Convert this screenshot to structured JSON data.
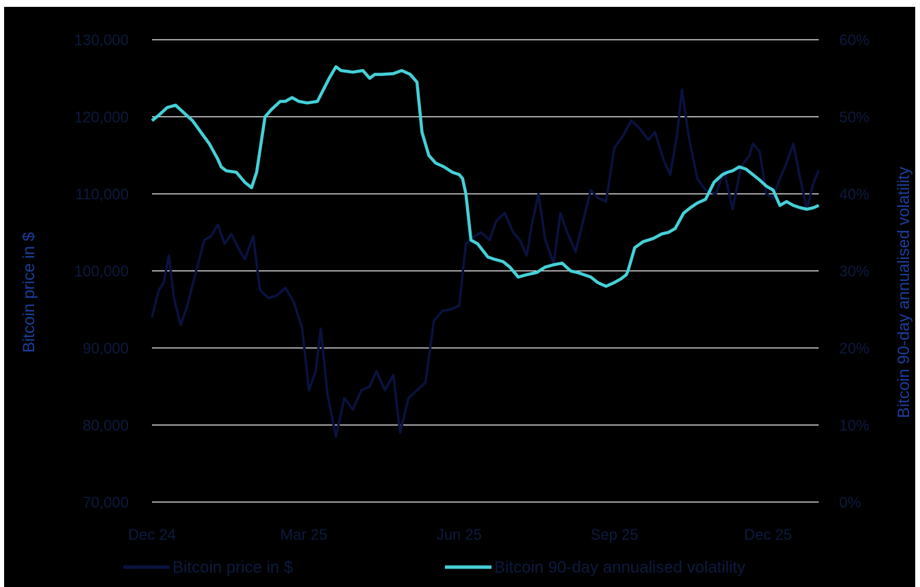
{
  "chart_data": {
    "type": "line",
    "title": "",
    "ylabel_left": "Bitcoin price in $",
    "ylabel_right": "Bitcoin 90-day annualised volatility",
    "ylim_left": [
      70000,
      130000
    ],
    "ylim_right": [
      0,
      60
    ],
    "yticks_left": [
      "70,000",
      "80,000",
      "90,000",
      "100,000",
      "110,000",
      "120,000",
      "130,000"
    ],
    "yticks_right": [
      "0%",
      "10%",
      "20%",
      "30%",
      "40%",
      "50%",
      "60%"
    ],
    "x_range": [
      "2024-12-01",
      "2025-12-31"
    ],
    "xticks": [
      {
        "label": "Dec 24",
        "date": "2024-12-01"
      },
      {
        "label": "Mar 25",
        "date": "2025-03-01"
      },
      {
        "label": "Jun 25",
        "date": "2025-06-01"
      },
      {
        "label": "Sep 25",
        "date": "2025-09-01"
      },
      {
        "label": "Dec 25",
        "date": "2025-12-01"
      }
    ],
    "grid": true,
    "legend_position": "bottom",
    "series": [
      {
        "name": "Bitcoin price in $",
        "axis": "left",
        "color": "#0a1240",
        "x": [
          "2024-12-01",
          "2024-12-05",
          "2024-12-08",
          "2024-12-11",
          "2024-12-14",
          "2024-12-18",
          "2024-12-22",
          "2024-12-26",
          "2025-01-01",
          "2025-01-05",
          "2025-01-09",
          "2025-01-13",
          "2025-01-17",
          "2025-01-21",
          "2025-01-25",
          "2025-01-30",
          "2025-02-03",
          "2025-02-08",
          "2025-02-13",
          "2025-02-18",
          "2025-02-23",
          "2025-02-28",
          "2025-03-04",
          "2025-03-08",
          "2025-03-11",
          "2025-03-15",
          "2025-03-20",
          "2025-03-25",
          "2025-03-30",
          "2025-04-04",
          "2025-04-09",
          "2025-04-13",
          "2025-04-18",
          "2025-04-23",
          "2025-04-27",
          "2025-05-02",
          "2025-05-07",
          "2025-05-12",
          "2025-05-17",
          "2025-05-22",
          "2025-05-27",
          "2025-06-01",
          "2025-06-05",
          "2025-06-10",
          "2025-06-14",
          "2025-06-19",
          "2025-06-23",
          "2025-06-28",
          "2025-07-03",
          "2025-07-07",
          "2025-07-11",
          "2025-07-14",
          "2025-07-18",
          "2025-07-22",
          "2025-07-27",
          "2025-07-31",
          "2025-08-04",
          "2025-08-09",
          "2025-08-14",
          "2025-08-18",
          "2025-08-22",
          "2025-08-27",
          "2025-09-01",
          "2025-09-06",
          "2025-09-11",
          "2025-09-16",
          "2025-09-21",
          "2025-09-25",
          "2025-09-30",
          "2025-10-04",
          "2025-10-08",
          "2025-10-11",
          "2025-10-15",
          "2025-10-20",
          "2025-10-25",
          "2025-10-31",
          "2025-11-05",
          "2025-11-10",
          "2025-11-15",
          "2025-11-20",
          "2025-11-22",
          "2025-11-26",
          "2025-11-30",
          "2025-12-04",
          "2025-12-08",
          "2025-12-12",
          "2025-12-16",
          "2025-12-20",
          "2025-12-24",
          "2025-12-28",
          "2025-12-31"
        ],
        "values": [
          94000,
          97500,
          98500,
          102000,
          96500,
          93000,
          95500,
          99000,
          104000,
          104500,
          106000,
          103500,
          104800,
          103000,
          101500,
          104500,
          97500,
          96500,
          96800,
          97800,
          96000,
          92500,
          84500,
          87000,
          92500,
          84000,
          78500,
          83500,
          82000,
          84500,
          85000,
          87000,
          84500,
          86500,
          79000,
          83500,
          84500,
          85500,
          93500,
          94800,
          95000,
          95500,
          103500,
          104500,
          105000,
          104000,
          106500,
          107500,
          105000,
          104000,
          102000,
          106000,
          110000,
          104000,
          101000,
          107500,
          105000,
          102500,
          107000,
          110500,
          109500,
          109000,
          116000,
          117500,
          119500,
          118500,
          117000,
          118000,
          114500,
          112500,
          117500,
          123500,
          117500,
          112000,
          110500,
          110000,
          113000,
          108000,
          113500,
          115000,
          116500,
          115500,
          110000,
          109500,
          112000,
          114000,
          116500,
          112000,
          108000,
          111500,
          113000
        ],
        "values_note_ignore": false
      },
      {
        "name": "Bitcoin 90-day annualised volatility",
        "axis": "right",
        "color": "#45d1d8",
        "x": [
          "2024-12-01",
          "2024-12-05",
          "2024-12-10",
          "2024-12-15",
          "2024-12-20",
          "2024-12-25",
          "2024-12-30",
          "2025-01-04",
          "2025-01-09",
          "2025-01-11",
          "2025-01-14",
          "2025-01-20",
          "2025-01-25",
          "2025-01-29",
          "2025-02-01",
          "2025-02-06",
          "2025-02-10",
          "2025-02-15",
          "2025-02-18",
          "2025-02-22",
          "2025-02-26",
          "2025-03-03",
          "2025-03-09",
          "2025-03-16",
          "2025-03-20",
          "2025-03-23",
          "2025-03-30",
          "2025-04-05",
          "2025-04-09",
          "2025-04-12",
          "2025-04-16",
          "2025-04-23",
          "2025-04-28",
          "2025-05-03",
          "2025-05-07",
          "2025-05-10",
          "2025-05-14",
          "2025-05-18",
          "2025-05-23",
          "2025-05-28",
          "2025-06-01",
          "2025-06-03",
          "2025-06-05",
          "2025-06-08",
          "2025-06-12",
          "2025-06-18",
          "2025-06-22",
          "2025-06-27",
          "2025-07-01",
          "2025-07-06",
          "2025-07-11",
          "2025-07-17",
          "2025-07-22",
          "2025-07-27",
          "2025-08-01",
          "2025-08-06",
          "2025-08-10",
          "2025-08-14",
          "2025-08-18",
          "2025-08-22",
          "2025-08-27",
          "2025-09-01",
          "2025-09-05",
          "2025-09-08",
          "2025-09-09",
          "2025-09-13",
          "2025-09-18",
          "2025-09-24",
          "2025-09-29",
          "2025-10-03",
          "2025-10-07",
          "2025-10-12",
          "2025-10-16",
          "2025-10-20",
          "2025-10-25",
          "2025-10-30",
          "2025-11-04",
          "2025-11-07",
          "2025-11-10",
          "2025-11-14",
          "2025-11-18",
          "2025-11-22",
          "2025-11-26",
          "2025-11-30",
          "2025-12-04",
          "2025-12-08",
          "2025-12-12",
          "2025-12-16",
          "2025-12-20",
          "2025-12-24",
          "2025-12-28",
          "2025-12-31"
        ],
        "values": [
          49.5,
          50.2,
          51.2,
          51.5,
          50.5,
          49.5,
          48.0,
          46.5,
          44.5,
          43.5,
          43.0,
          42.8,
          41.5,
          40.8,
          42.8,
          50.0,
          51.0,
          52.0,
          52.0,
          52.5,
          52.0,
          51.8,
          52.0,
          55.0,
          56.5,
          56.0,
          55.8,
          56.0,
          55.0,
          55.5,
          55.5,
          55.6,
          56.0,
          55.5,
          54.5,
          48.0,
          45.0,
          44.0,
          43.5,
          42.8,
          42.5,
          42.0,
          40.0,
          34.0,
          33.5,
          31.8,
          31.5,
          31.2,
          30.5,
          29.2,
          29.5,
          29.8,
          30.5,
          30.8,
          31.0,
          30.0,
          29.8,
          29.5,
          29.2,
          28.5,
          28.0,
          28.5,
          29.0,
          29.5,
          30.0,
          33.0,
          33.8,
          34.2,
          34.8,
          35.0,
          35.5,
          37.5,
          38.2,
          38.8,
          39.3,
          41.5,
          42.5,
          42.8,
          43.0,
          43.5,
          43.2,
          42.5,
          41.8,
          41.0,
          40.5,
          38.5,
          39.0,
          38.5,
          38.2,
          38.0,
          38.2,
          38.5
        ],
        "values_note_ignore": false
      }
    ]
  }
}
